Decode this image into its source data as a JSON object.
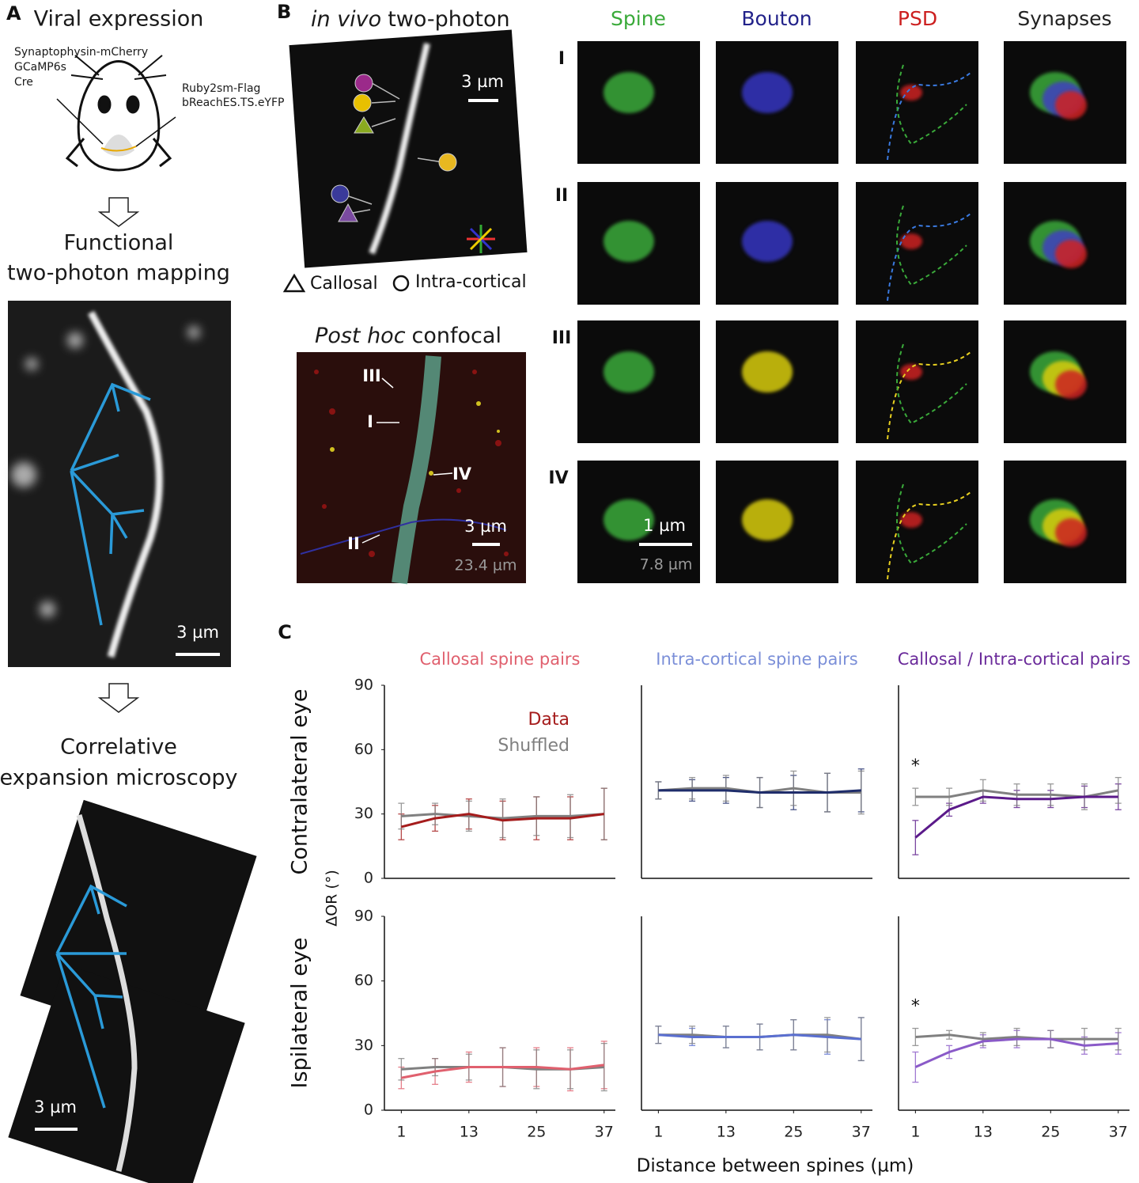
{
  "panel_a": {
    "label": "A",
    "title": "Viral expression",
    "injection_left": [
      "Synaptophysin-mCherry",
      "GCaMP6s",
      "Cre"
    ],
    "injection_right": [
      "Ruby2sm-Flag",
      "bReachES.TS.eYFP"
    ],
    "step2": [
      "Functional",
      "two-photon mapping"
    ],
    "scale_bar_1": "3 µm",
    "step3": [
      "Correlative",
      "expansion microscopy"
    ],
    "scale_bar_2": "3 µm"
  },
  "panel_b": {
    "label": "B",
    "invivo_title_italic": "in vivo",
    "invivo_title_rest": "two-photon",
    "invivo_scale": "3 µm",
    "legend_callosal": "Callosal",
    "legend_intracortical": "Intra-cortical",
    "confocal_title_italic": "Post hoc",
    "confocal_title_rest": "confocal",
    "confocal_markers": [
      "III",
      "I",
      "IV",
      "II"
    ],
    "confocal_scale": "3 µm",
    "confocal_scale_expanded": "23.4 µm",
    "columns": [
      "Spine",
      "Bouton",
      "PSD",
      "Synapses"
    ],
    "rows": [
      "I",
      "II",
      "III",
      "IV"
    ],
    "zoom_scale": "1 µm",
    "zoom_scale_expanded": "7.8 µm"
  },
  "panel_c": {
    "label": "C",
    "y_label": "ΔOR (°)",
    "x_label": "Distance between spines (µm)",
    "row_labels": [
      "Contralateral eye",
      "Ispilateral eye"
    ]
  },
  "chart_data": [
    {
      "type": "line",
      "title": "Callosal spine pairs",
      "title_color": "#e0606e",
      "legend": "upper center",
      "x": [
        1,
        7,
        13,
        19,
        25,
        31,
        37
      ],
      "xlim": [
        -2,
        39
      ],
      "ylim": [
        0,
        90
      ],
      "yticks": [
        0,
        30,
        60,
        90
      ],
      "series": [
        {
          "name": "Data",
          "color": "#a51c1c",
          "values": [
            24,
            28,
            30,
            27,
            28,
            28,
            30
          ],
          "errors": [
            6,
            6,
            7,
            9,
            10,
            10,
            12
          ]
        },
        {
          "name": "Shuffled",
          "color": "#808080",
          "values": [
            29,
            30,
            29,
            28,
            29,
            29,
            30
          ],
          "errors": [
            6,
            5,
            7,
            9,
            9,
            10,
            12
          ]
        }
      ]
    },
    {
      "type": "line",
      "title": "Intra-cortical spine pairs",
      "title_color": "#7b8fd8",
      "x": [
        1,
        7,
        13,
        19,
        25,
        31,
        37
      ],
      "xlim": [
        -2,
        39
      ],
      "ylim": [
        0,
        90
      ],
      "series": [
        {
          "color": "#1f2d6b",
          "values": [
            41,
            41,
            41,
            40,
            40,
            40,
            41
          ],
          "errors": [
            4,
            5,
            6,
            7,
            8,
            9,
            10
          ]
        },
        {
          "color": "#808080",
          "values": [
            41,
            42,
            42,
            40,
            42,
            40,
            40
          ],
          "errors": [
            4,
            5,
            6,
            7,
            8,
            9,
            10
          ]
        }
      ]
    },
    {
      "type": "line",
      "title": "Callosal / Intra-cortical pairs",
      "title_color": "#6a2a9a",
      "annotation": "*",
      "x": [
        1,
        7,
        13,
        19,
        25,
        31,
        37
      ],
      "xlim": [
        -2,
        39
      ],
      "ylim": [
        0,
        90
      ],
      "series": [
        {
          "color": "#5b1a8a",
          "values": [
            19,
            32,
            38,
            37,
            37,
            38,
            38
          ],
          "errors": [
            8,
            3,
            3,
            4,
            4,
            5,
            6
          ]
        },
        {
          "color": "#808080",
          "values": [
            38,
            38,
            41,
            39,
            39,
            38,
            41
          ],
          "errors": [
            4,
            4,
            5,
            5,
            5,
            6,
            6
          ]
        }
      ]
    },
    {
      "type": "line",
      "x": [
        1,
        7,
        13,
        19,
        25,
        31,
        37
      ],
      "xlim": [
        -2,
        39
      ],
      "ylim": [
        0,
        90
      ],
      "yticks": [
        0,
        30,
        60,
        90
      ],
      "xticks": [
        1,
        13,
        25,
        37
      ],
      "series": [
        {
          "color": "#e0606e",
          "values": [
            15,
            18,
            20,
            20,
            20,
            19,
            21
          ],
          "errors": [
            5,
            6,
            7,
            9,
            9,
            10,
            11
          ]
        },
        {
          "color": "#808080",
          "values": [
            19,
            20,
            20,
            20,
            19,
            19,
            20
          ],
          "errors": [
            5,
            4,
            6,
            9,
            9,
            9,
            11
          ]
        }
      ]
    },
    {
      "type": "line",
      "x": [
        1,
        7,
        13,
        19,
        25,
        31,
        37
      ],
      "xlim": [
        -2,
        39
      ],
      "ylim": [
        0,
        90
      ],
      "xticks": [
        1,
        13,
        25,
        37
      ],
      "series": [
        {
          "color": "#5a6fd0",
          "values": [
            35,
            34,
            34,
            34,
            35,
            34,
            33
          ],
          "errors": [
            4,
            4,
            5,
            6,
            7,
            8,
            10
          ]
        },
        {
          "color": "#808080",
          "values": [
            35,
            35,
            34,
            34,
            35,
            35,
            33
          ],
          "errors": [
            4,
            4,
            5,
            6,
            7,
            8,
            10
          ]
        }
      ]
    },
    {
      "type": "line",
      "annotation": "*",
      "x": [
        1,
        7,
        13,
        19,
        25,
        31,
        37
      ],
      "xlim": [
        -2,
        39
      ],
      "ylim": [
        0,
        90
      ],
      "xticks": [
        1,
        13,
        25,
        37
      ],
      "series": [
        {
          "color": "#8a5ac8",
          "values": [
            20,
            27,
            32,
            33,
            33,
            30,
            31
          ],
          "errors": [
            7,
            3,
            3,
            4,
            4,
            4,
            5
          ]
        },
        {
          "color": "#808080",
          "values": [
            34,
            35,
            33,
            34,
            33,
            33,
            33
          ],
          "errors": [
            4,
            2,
            3,
            4,
            4,
            5,
            5
          ]
        }
      ]
    }
  ]
}
